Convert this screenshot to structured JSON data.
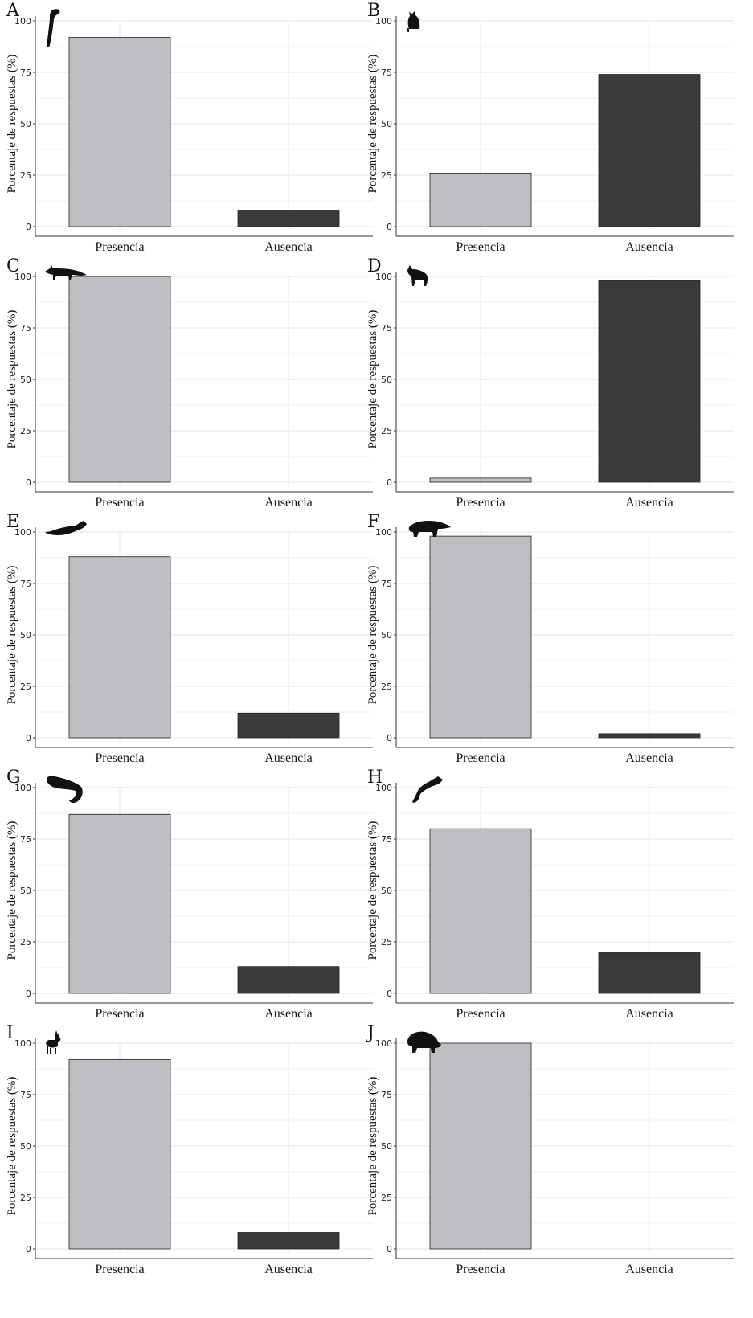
{
  "colors": {
    "presencia": "#bebfc3",
    "ausencia": "#3a3a3a",
    "grid": "#e6e6e6",
    "axis": "#333333"
  },
  "chart_data": [
    {
      "panel": "A",
      "type": "bar",
      "animal_icon": "marten-icon",
      "categories": [
        "Presencia",
        "Ausencia"
      ],
      "values": [
        92,
        8
      ],
      "ylabel": "Porcentaje de respuestas (%)",
      "yticks": [
        "0",
        "25",
        "50",
        "75",
        "100"
      ],
      "ylim": [
        0,
        100
      ],
      "grid": true
    },
    {
      "panel": "B",
      "type": "bar",
      "animal_icon": "wildcat-icon",
      "categories": [
        "Presencia",
        "Ausencia"
      ],
      "values": [
        26,
        74
      ],
      "ylabel": "Porcentaje de respuestas (%)",
      "yticks": [
        "0",
        "25",
        "50",
        "75",
        "100"
      ],
      "ylim": [
        0,
        100
      ],
      "grid": true
    },
    {
      "panel": "C",
      "type": "bar",
      "animal_icon": "fox-icon",
      "categories": [
        "Presencia",
        "Ausencia"
      ],
      "values": [
        100,
        0
      ],
      "ylabel": "Porcentaje de respuestas (%)",
      "yticks": [
        "0",
        "25",
        "50",
        "75",
        "100"
      ],
      "ylim": [
        0,
        100
      ],
      "grid": true
    },
    {
      "panel": "D",
      "type": "bar",
      "animal_icon": "wolf-icon",
      "categories": [
        "Presencia",
        "Ausencia"
      ],
      "values": [
        2,
        98
      ],
      "ylabel": "Porcentaje de respuestas (%)",
      "yticks": [
        "0",
        "25",
        "50",
        "75",
        "100"
      ],
      "ylim": [
        0,
        100
      ],
      "grid": true
    },
    {
      "panel": "E",
      "type": "bar",
      "animal_icon": "polecat-icon",
      "categories": [
        "Presencia",
        "Ausencia"
      ],
      "values": [
        88,
        12
      ],
      "ylabel": "Porcentaje de respuestas (%)",
      "yticks": [
        "0",
        "25",
        "50",
        "75",
        "100"
      ],
      "ylim": [
        0,
        100
      ],
      "grid": true
    },
    {
      "panel": "F",
      "type": "bar",
      "animal_icon": "badger-icon",
      "categories": [
        "Presencia",
        "Ausencia"
      ],
      "values": [
        98,
        2
      ],
      "ylabel": "Porcentaje de respuestas (%)",
      "yticks": [
        "0",
        "25",
        "50",
        "75",
        "100"
      ],
      "ylim": [
        0,
        100
      ],
      "grid": true
    },
    {
      "panel": "G",
      "type": "bar",
      "animal_icon": "otter-icon",
      "categories": [
        "Presencia",
        "Ausencia"
      ],
      "values": [
        87,
        13
      ],
      "ylabel": "Porcentaje de respuestas (%)",
      "yticks": [
        "0",
        "25",
        "50",
        "75",
        "100"
      ],
      "ylim": [
        0,
        100
      ],
      "grid": true
    },
    {
      "panel": "H",
      "type": "bar",
      "animal_icon": "weasel-icon",
      "categories": [
        "Presencia",
        "Ausencia"
      ],
      "values": [
        80,
        20
      ],
      "ylabel": "Porcentaje de respuestas (%)",
      "yticks": [
        "0",
        "25",
        "50",
        "75",
        "100"
      ],
      "ylim": [
        0,
        100
      ],
      "grid": true
    },
    {
      "panel": "I",
      "type": "bar",
      "animal_icon": "roe-deer-icon",
      "categories": [
        "Presencia",
        "Ausencia"
      ],
      "values": [
        92,
        8
      ],
      "ylabel": "Porcentaje de respuestas (%)",
      "yticks": [
        "0",
        "25",
        "50",
        "75",
        "100"
      ],
      "ylim": [
        0,
        100
      ],
      "grid": true
    },
    {
      "panel": "J",
      "type": "bar",
      "animal_icon": "wild-boar-icon",
      "categories": [
        "Presencia",
        "Ausencia"
      ],
      "values": [
        100,
        0
      ],
      "ylabel": "Porcentaje de respuestas (%)",
      "yticks": [
        "0",
        "25",
        "50",
        "75",
        "100"
      ],
      "ylim": [
        0,
        100
      ],
      "grid": true
    }
  ]
}
